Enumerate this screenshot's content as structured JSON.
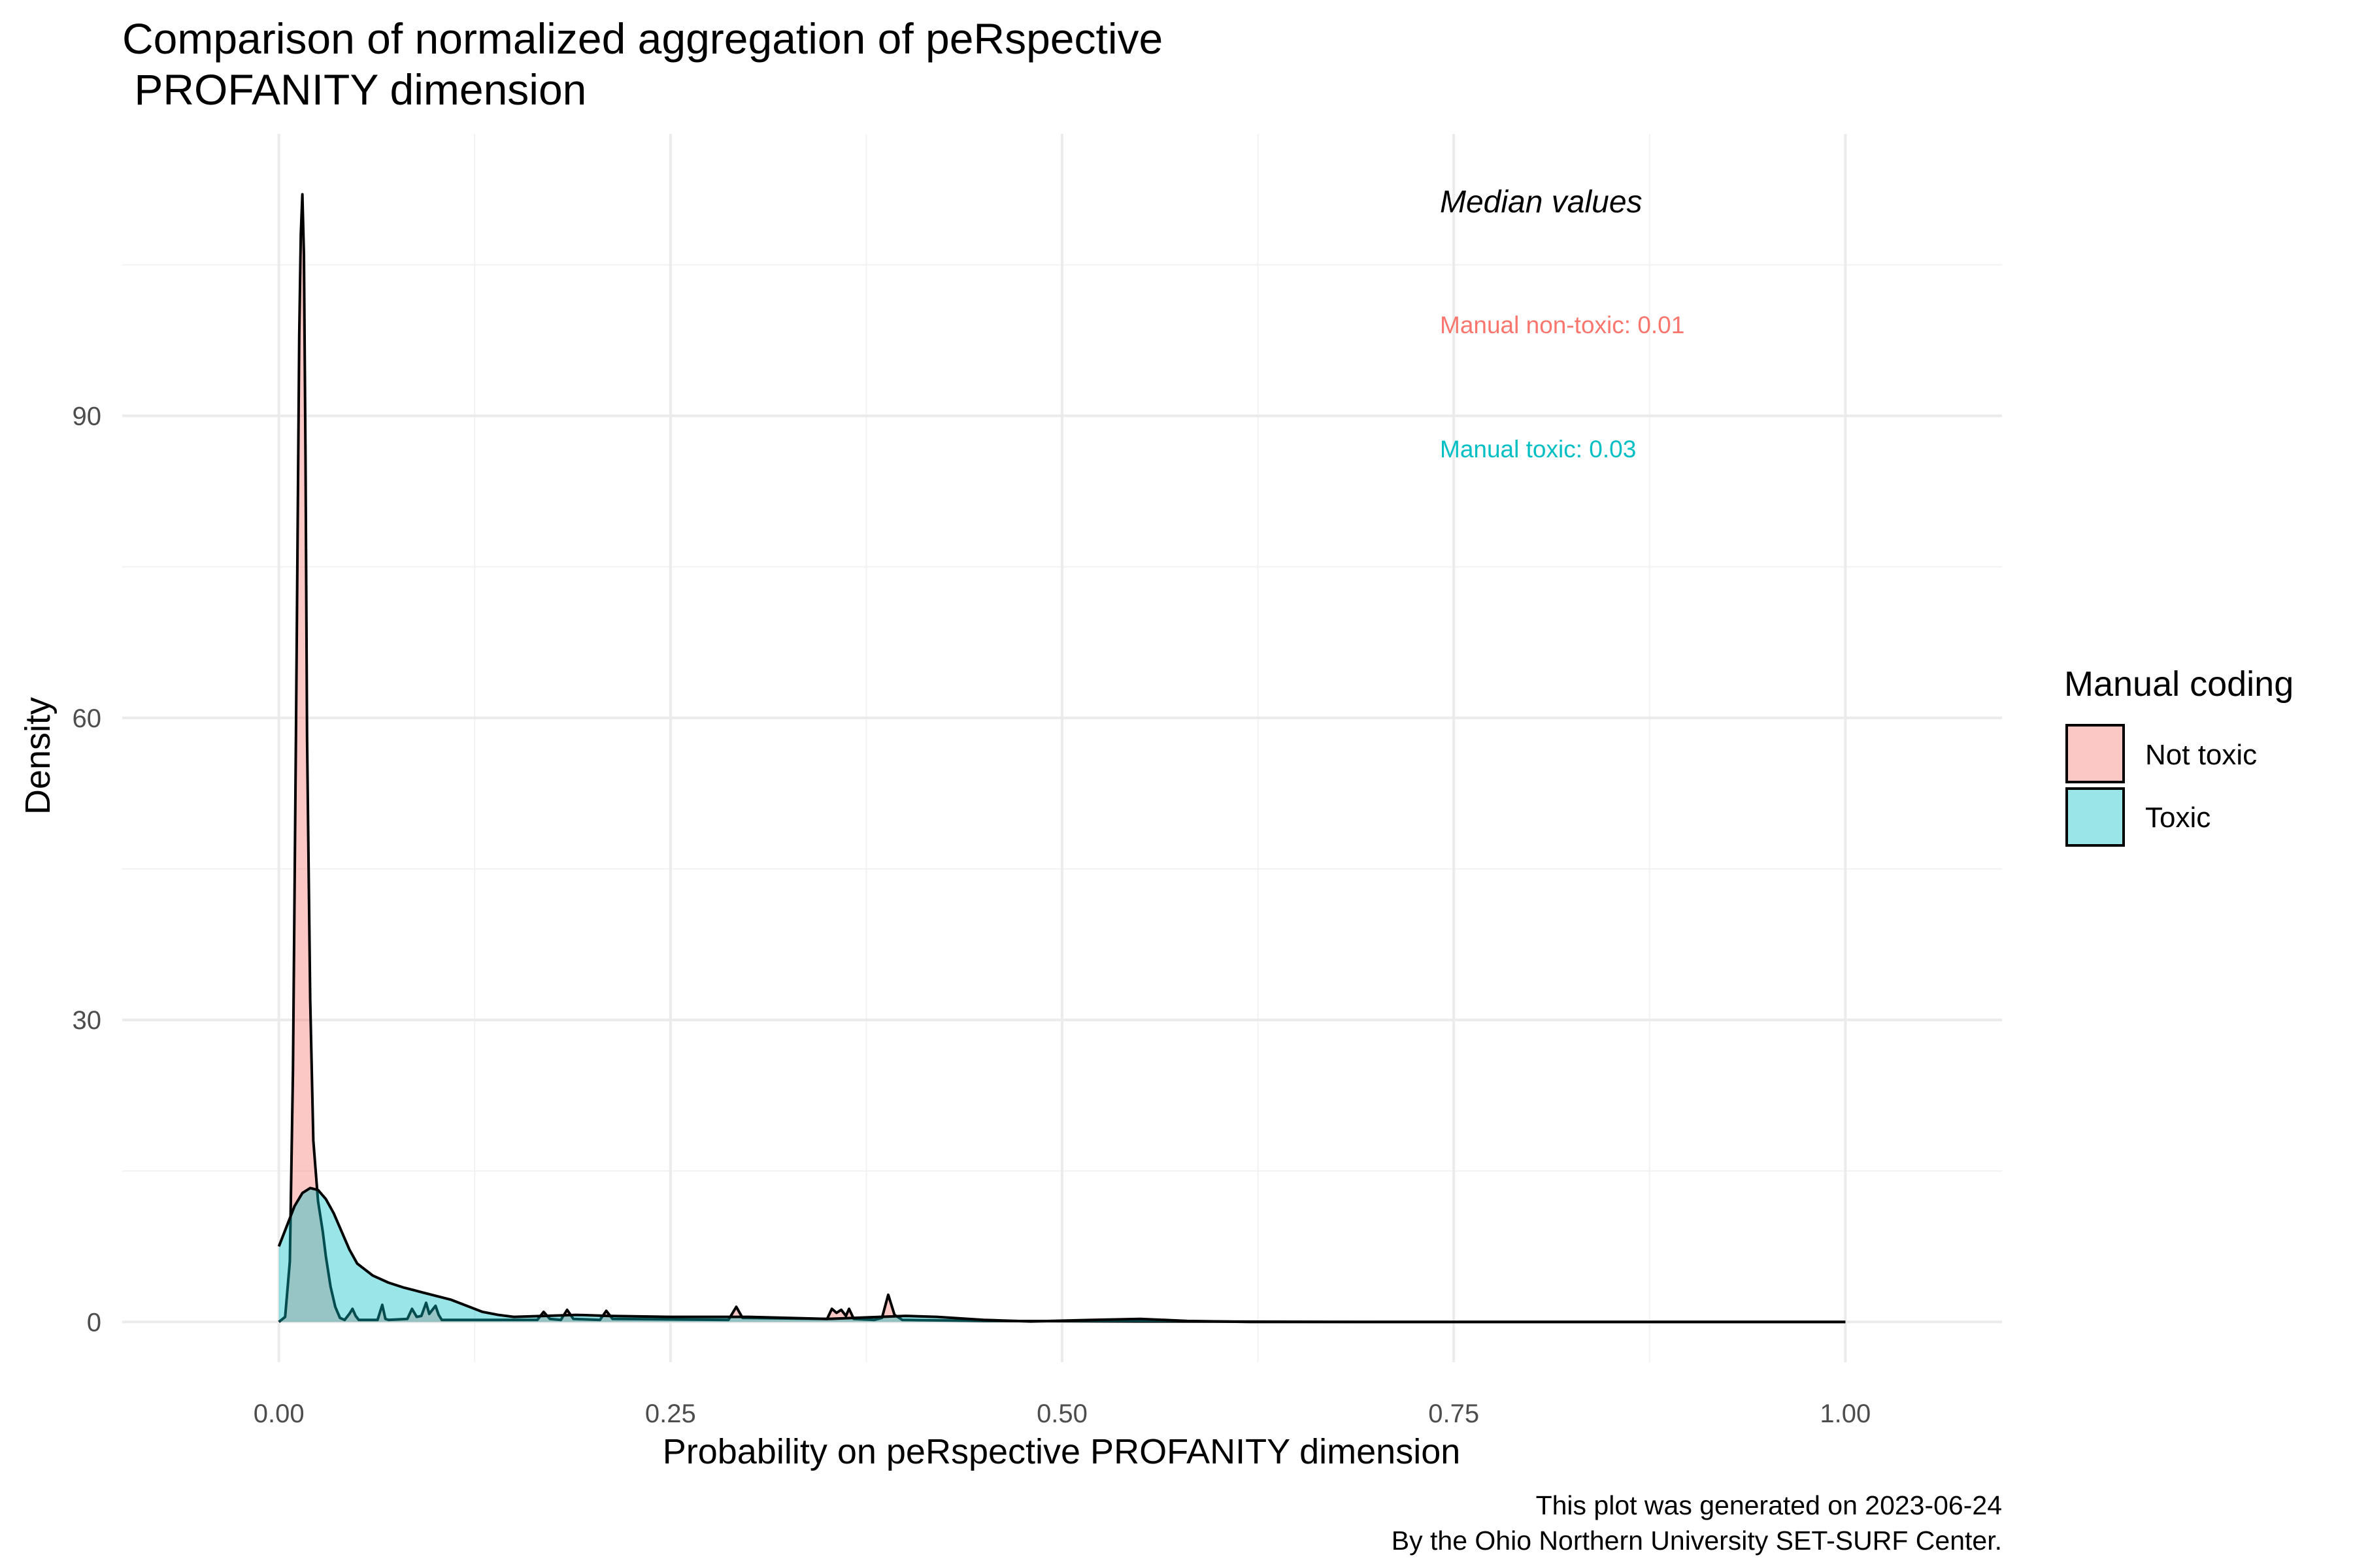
{
  "chart_data": {
    "type": "area",
    "title_line1": "Comparison of normalized aggregation of peRspective",
    "title_line2": " PROFANITY dimension",
    "xlabel": "Probability on peRspective PROFANITY dimension",
    "ylabel": "Density",
    "xlim": [
      -0.1,
      1.1
    ],
    "ylim": [
      -4,
      118
    ],
    "x_ticks": [
      0,
      0.25,
      0.5,
      0.75,
      1.0
    ],
    "x_tick_labels": [
      "0.00",
      "0.25",
      "0.50",
      "0.75",
      "1.00"
    ],
    "y_ticks": [
      0,
      30,
      60,
      90
    ],
    "y_tick_labels": [
      "0",
      "30",
      "60",
      "90"
    ],
    "grid": true,
    "legend": {
      "title": "Manual coding",
      "position": "right",
      "entries": [
        "Not toxic",
        "Toxic"
      ]
    },
    "annotations": {
      "heading": "Median values",
      "non_toxic": "Manual non-toxic: 0.01",
      "toxic": "Manual toxic: 0.03"
    },
    "caption_line1": "This plot was generated on 2023-06-24",
    "caption_line2": "By the Ohio Northern University SET-SURF Center.",
    "series": [
      {
        "name": "Not toxic",
        "fill": "#f8766d",
        "points": [
          [
            0.0,
            0
          ],
          [
            0.004,
            0.5
          ],
          [
            0.007,
            6
          ],
          [
            0.009,
            25
          ],
          [
            0.011,
            60
          ],
          [
            0.013,
            98
          ],
          [
            0.014,
            108
          ],
          [
            0.015,
            112
          ],
          [
            0.016,
            106
          ],
          [
            0.017,
            86
          ],
          [
            0.018,
            58
          ],
          [
            0.02,
            32
          ],
          [
            0.022,
            18
          ],
          [
            0.025,
            12
          ],
          [
            0.028,
            9
          ],
          [
            0.03,
            6.5
          ],
          [
            0.033,
            3.5
          ],
          [
            0.036,
            1.5
          ],
          [
            0.039,
            0.4
          ],
          [
            0.042,
            0.2
          ],
          [
            0.045,
            0.8
          ],
          [
            0.047,
            1.3
          ],
          [
            0.049,
            0.6
          ],
          [
            0.051,
            0.2
          ],
          [
            0.063,
            0.2
          ],
          [
            0.066,
            1.7
          ],
          [
            0.068,
            0.3
          ],
          [
            0.07,
            0.2
          ],
          [
            0.082,
            0.3
          ],
          [
            0.085,
            1.3
          ],
          [
            0.088,
            0.5
          ],
          [
            0.091,
            0.6
          ],
          [
            0.094,
            1.9
          ],
          [
            0.096,
            0.8
          ],
          [
            0.098,
            1.2
          ],
          [
            0.1,
            1.6
          ],
          [
            0.102,
            0.7
          ],
          [
            0.104,
            0.2
          ],
          [
            0.165,
            0.2
          ],
          [
            0.169,
            1.0
          ],
          [
            0.173,
            0.3
          ],
          [
            0.18,
            0.2
          ],
          [
            0.184,
            1.2
          ],
          [
            0.188,
            0.3
          ],
          [
            0.205,
            0.2
          ],
          [
            0.209,
            1.1
          ],
          [
            0.213,
            0.3
          ],
          [
            0.287,
            0.2
          ],
          [
            0.292,
            1.5
          ],
          [
            0.296,
            0.4
          ],
          [
            0.35,
            0.3
          ],
          [
            0.353,
            1.3
          ],
          [
            0.356,
            0.9
          ],
          [
            0.359,
            1.2
          ],
          [
            0.362,
            0.6
          ],
          [
            0.364,
            1.3
          ],
          [
            0.367,
            0.3
          ],
          [
            0.38,
            0.2
          ],
          [
            0.385,
            0.4
          ],
          [
            0.389,
            2.7
          ],
          [
            0.393,
            0.7
          ],
          [
            0.398,
            0.2
          ],
          [
            0.45,
            0.1
          ],
          [
            0.55,
            0.05
          ],
          [
            0.7,
            0
          ],
          [
            0.85,
            0
          ],
          [
            1.0,
            0
          ]
        ]
      },
      {
        "name": "Toxic",
        "fill": "#00bfc4",
        "points": [
          [
            0.0,
            7.5
          ],
          [
            0.005,
            9.5
          ],
          [
            0.01,
            11.5
          ],
          [
            0.015,
            12.8
          ],
          [
            0.02,
            13.3
          ],
          [
            0.025,
            13.1
          ],
          [
            0.03,
            12.2
          ],
          [
            0.035,
            10.8
          ],
          [
            0.04,
            9.0
          ],
          [
            0.045,
            7.2
          ],
          [
            0.05,
            5.8
          ],
          [
            0.06,
            4.6
          ],
          [
            0.07,
            3.9
          ],
          [
            0.08,
            3.4
          ],
          [
            0.09,
            3.0
          ],
          [
            0.1,
            2.6
          ],
          [
            0.11,
            2.2
          ],
          [
            0.12,
            1.6
          ],
          [
            0.13,
            1.0
          ],
          [
            0.14,
            0.7
          ],
          [
            0.15,
            0.5
          ],
          [
            0.17,
            0.6
          ],
          [
            0.19,
            0.7
          ],
          [
            0.21,
            0.6
          ],
          [
            0.25,
            0.5
          ],
          [
            0.3,
            0.5
          ],
          [
            0.35,
            0.3
          ],
          [
            0.4,
            0.6
          ],
          [
            0.42,
            0.5
          ],
          [
            0.45,
            0.2
          ],
          [
            0.48,
            0.05
          ],
          [
            0.52,
            0.2
          ],
          [
            0.55,
            0.3
          ],
          [
            0.58,
            0.1
          ],
          [
            0.62,
            0
          ],
          [
            0.8,
            0
          ],
          [
            1.0,
            0
          ]
        ]
      }
    ]
  }
}
